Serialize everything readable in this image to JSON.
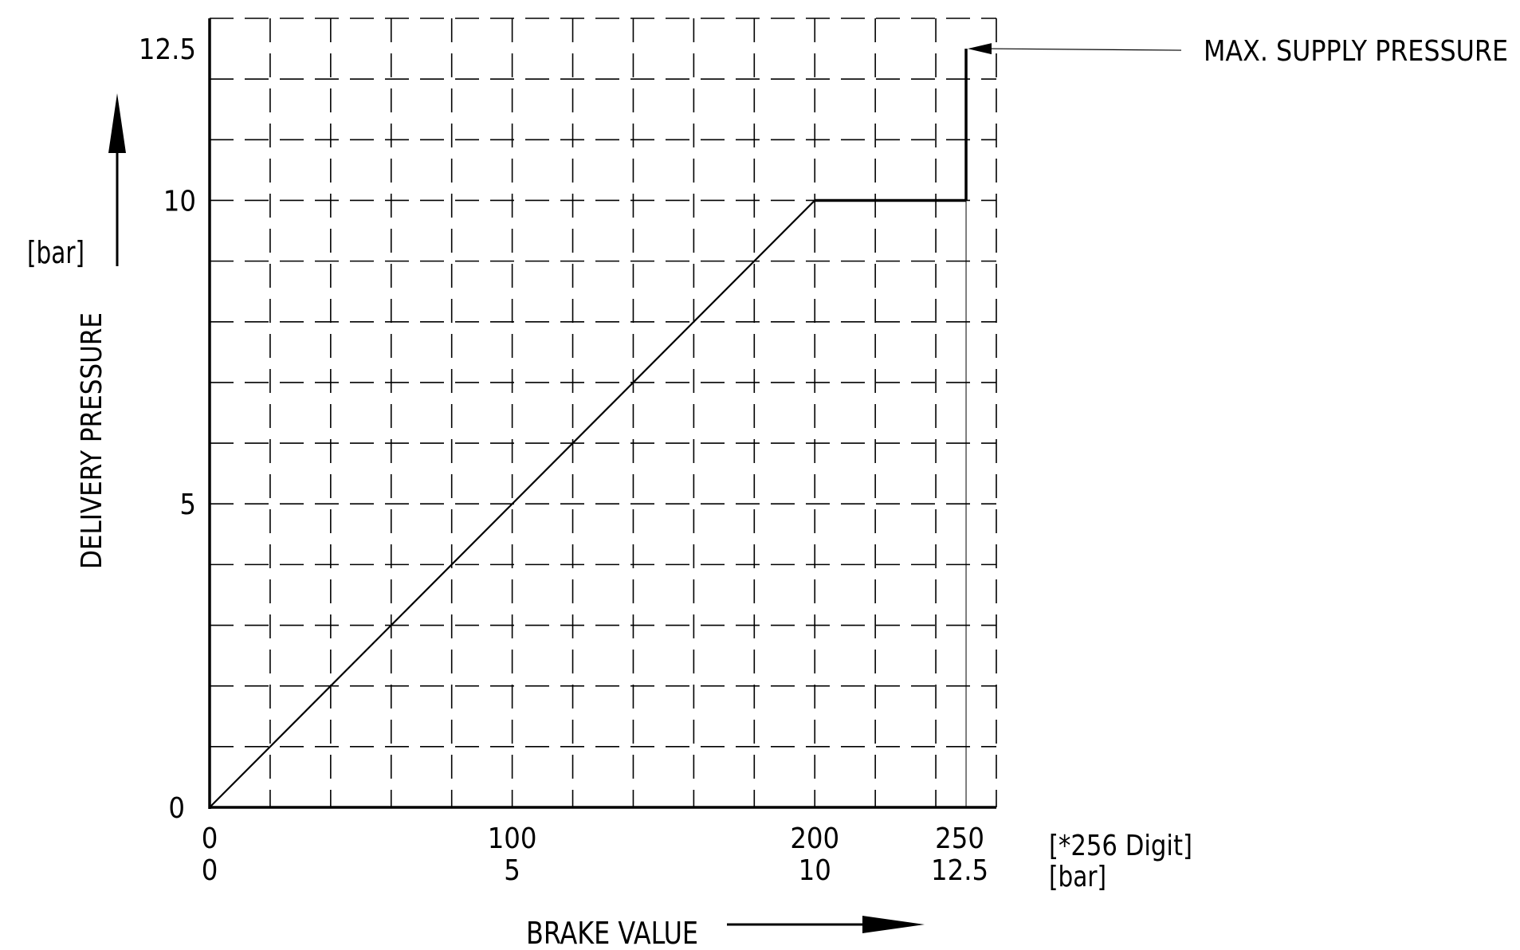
{
  "chart_data": {
    "type": "line",
    "title": "",
    "xlabel": "BRAKE VALUE",
    "ylabel": "DELIVERY PRESSURE",
    "y_unit": "[bar]",
    "x_unit_primary": "[*256 Digit]",
    "x_unit_secondary": "[bar]",
    "xlim": [
      0,
      260
    ],
    "ylim": [
      0,
      13
    ],
    "grid": true,
    "x_ticks_primary": [
      "0",
      "100",
      "200",
      "250"
    ],
    "x_ticks_primary_values": [
      0,
      100,
      200,
      250
    ],
    "x_ticks_secondary": [
      "0",
      "5",
      "10",
      "12.5"
    ],
    "y_ticks": [
      "0",
      "5",
      "10",
      "12.5"
    ],
    "y_tick_values": [
      0,
      5,
      10,
      12.5
    ],
    "series": [
      {
        "x": [
          0,
          200,
          250
        ],
        "y": [
          0,
          10,
          10
        ]
      },
      {
        "x": [
          250,
          250
        ],
        "y": [
          10,
          12.5
        ]
      }
    ],
    "annotations": [
      {
        "text": "MAX. SUPPLY PRESSURE",
        "x": 250,
        "y": 12.5
      }
    ]
  }
}
